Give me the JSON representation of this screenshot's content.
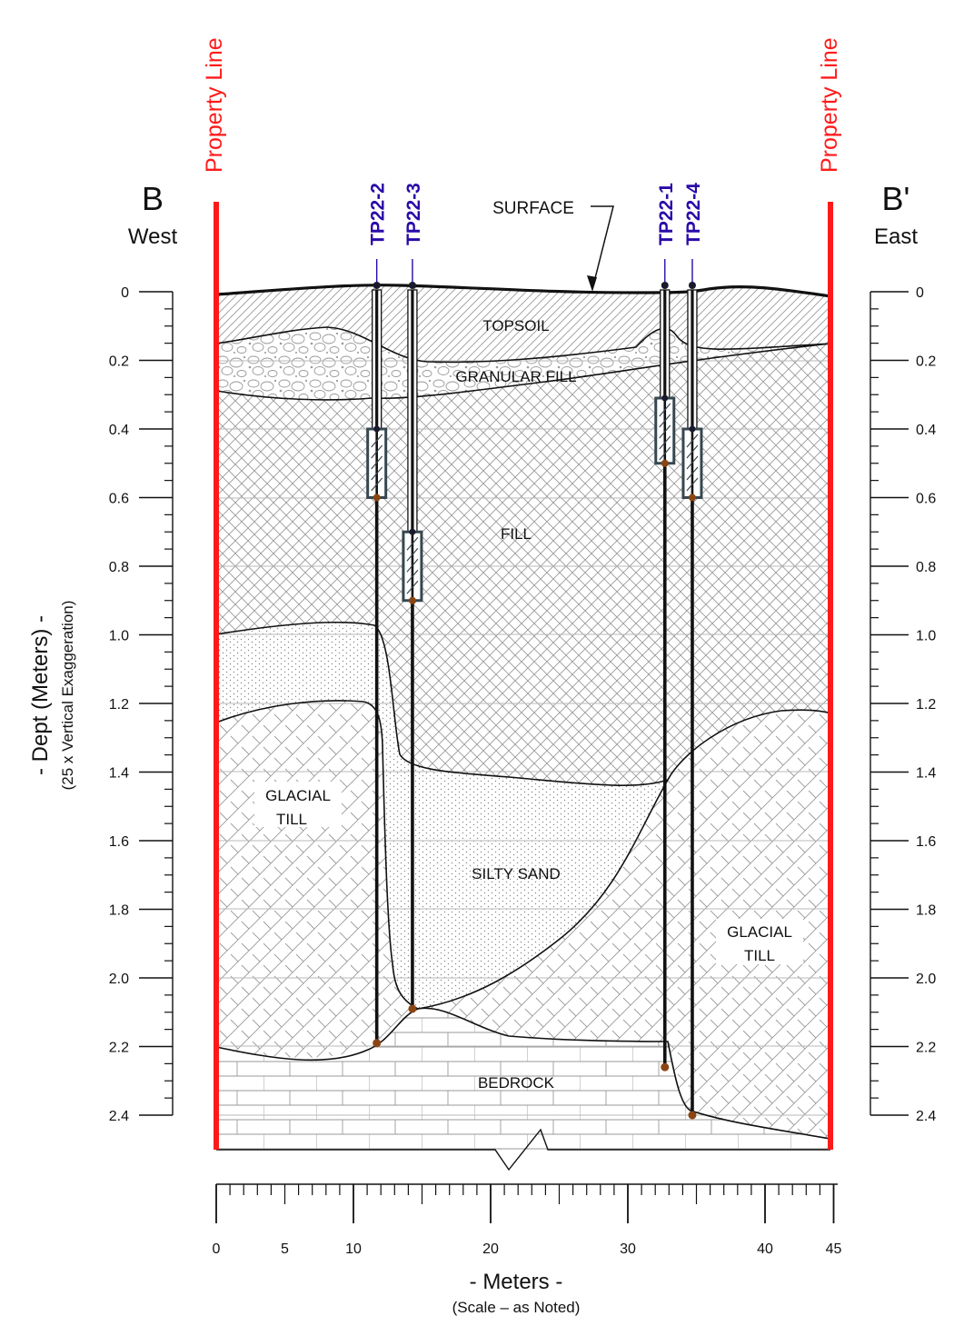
{
  "header": {
    "left_letter": "B",
    "left_direction": "West",
    "right_letter": "B'",
    "right_direction": "East",
    "property_line_left": "Property Line",
    "property_line_right": "Property Line",
    "surface_label": "SURFACE"
  },
  "left_axis": {
    "title": "- Dept (Meters) -",
    "subtitle": "(25 x Vertical Exaggeration)"
  },
  "bottom_axis": {
    "title": "- Meters -",
    "subtitle": "(Scale – as Noted)"
  },
  "depth_ticks": [
    "0",
    "0.2",
    "0.4",
    "0.6",
    "0.8",
    "1.0",
    "1.2",
    "1.4",
    "1.6",
    "1.8",
    "2.0",
    "2.2",
    "2.4"
  ],
  "distance_ticks": [
    "0",
    "5",
    "10",
    "20",
    "30",
    "40",
    "45"
  ],
  "layers": {
    "topsoil": "TOPSOIL",
    "granular_fill": "GRANULAR FILL",
    "fill": "FILL",
    "glacial_till_left_1": "GLACIAL",
    "glacial_till_left_2": "TILL",
    "silty_sand": "SILTY SAND",
    "glacial_till_right_1": "GLACIAL",
    "glacial_till_right_2": "TILL",
    "bedrock": "BEDROCK"
  },
  "test_pits": [
    {
      "id": "TP22-2",
      "distance_m": 11.7,
      "screen_top_m": 0.4,
      "screen_bottom_m": 0.6,
      "bottom_m": 2.19
    },
    {
      "id": "TP22-3",
      "distance_m": 14.3,
      "screen_top_m": 0.7,
      "screen_bottom_m": 0.9,
      "bottom_m": 2.09
    },
    {
      "id": "TP22-1",
      "distance_m": 32.7,
      "screen_top_m": 0.31,
      "screen_bottom_m": 0.5,
      "bottom_m": 2.26
    },
    {
      "id": "TP22-4",
      "distance_m": 34.7,
      "screen_top_m": 0.4,
      "screen_bottom_m": 0.6,
      "bottom_m": 2.4
    }
  ],
  "colors": {
    "property_line": "#ff1a1a",
    "test_pit_label": "#2a0aa8",
    "screen_box": "#37474f",
    "pit_bottom_dot": "#8b4513",
    "hatch": "#9a9a9a"
  }
}
